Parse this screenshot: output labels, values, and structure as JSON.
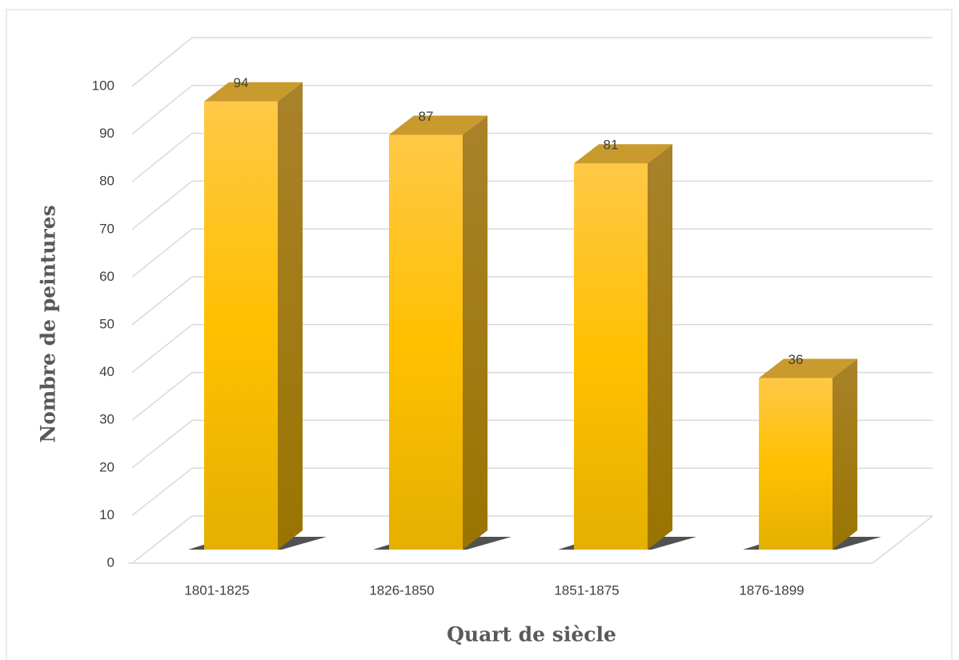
{
  "chart_data": {
    "type": "bar3d",
    "categories": [
      "1801-1825",
      "1826-1850",
      "1851-1875",
      "1876-1899"
    ],
    "values": [
      94,
      87,
      81,
      36
    ],
    "color": "#ffc000",
    "ylim": [
      0,
      100
    ],
    "yticks": [
      0,
      10,
      20,
      30,
      40,
      50,
      60,
      70,
      80,
      90,
      100
    ],
    "grid": true,
    "xlabel": "Quart de siècle",
    "ylabel": "Nombre de peintures"
  }
}
